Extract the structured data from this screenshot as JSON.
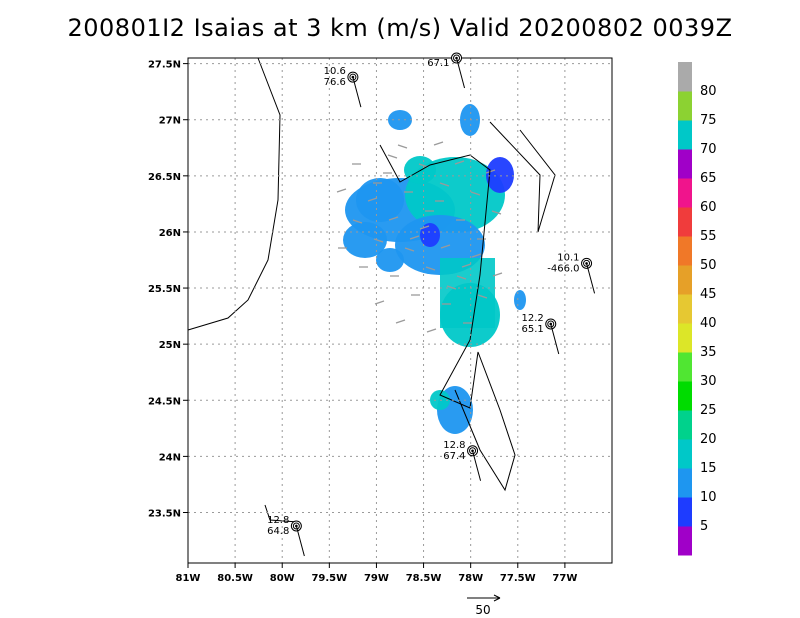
{
  "chart_data": {
    "type": "heatmap",
    "title": "200801I2 Isaias at 3 km (m/s) Valid 20200802 0039Z",
    "xlim": [
      -81,
      -76.5
    ],
    "ylim": [
      23.05,
      27.55
    ],
    "x_ticks": [
      {
        "v": -81,
        "label": "81W"
      },
      {
        "v": -80.5,
        "label": "80.5W"
      },
      {
        "v": -80,
        "label": "80W"
      },
      {
        "v": -79.5,
        "label": "79.5W"
      },
      {
        "v": -79,
        "label": "79W"
      },
      {
        "v": -78.5,
        "label": "78.5W"
      },
      {
        "v": -78,
        "label": "78W"
      },
      {
        "v": -77.5,
        "label": "77.5W"
      },
      {
        "v": -77,
        "label": "77W"
      }
    ],
    "y_ticks": [
      {
        "v": 23.5,
        "label": "23.5N"
      },
      {
        "v": 24,
        "label": "24N"
      },
      {
        "v": 24.5,
        "label": "24.5N"
      },
      {
        "v": 25,
        "label": "25N"
      },
      {
        "v": 25.5,
        "label": "25.5N"
      },
      {
        "v": 26,
        "label": "26N"
      },
      {
        "v": 26.5,
        "label": "26.5N"
      },
      {
        "v": 27,
        "label": "27N"
      },
      {
        "v": 27.5,
        "label": "27.5N"
      }
    ],
    "grid": true,
    "colorbar": {
      "labels": [
        "5",
        "10",
        "15",
        "20",
        "25",
        "30",
        "35",
        "40",
        "45",
        "50",
        "55",
        "60",
        "65",
        "70",
        "75",
        "80"
      ],
      "colors": [
        "#a000c8",
        "#1e3cff",
        "#1e96f0",
        "#00c8c8",
        "#00d28c",
        "#00dc00",
        "#50e632",
        "#dce628",
        "#e6c832",
        "#e6a028",
        "#f07828",
        "#f03c3c",
        "#f0148c",
        "#a000c8",
        "#00c8c8",
        "#8cd232",
        "#aaaaaa"
      ]
    },
    "wind_reference": {
      "label": "50"
    },
    "stations": [
      {
        "lon": -79.25,
        "lat": 27.38,
        "t1": "10.6",
        "t2": "76.6"
      },
      {
        "lon": -78.15,
        "lat": 27.55,
        "t1": "",
        "t2": "67.1"
      },
      {
        "lon": -76.77,
        "lat": 25.72,
        "t1": "10.1",
        "t2": "-466.0"
      },
      {
        "lon": -77.15,
        "lat": 25.18,
        "t1": "12.2",
        "t2": "65.1"
      },
      {
        "lon": -77.98,
        "lat": 24.05,
        "t1": "12.8",
        "t2": "67.4"
      },
      {
        "lon": -79.85,
        "lat": 23.38,
        "t1": "12.8",
        "t2": "64.8"
      }
    ]
  }
}
